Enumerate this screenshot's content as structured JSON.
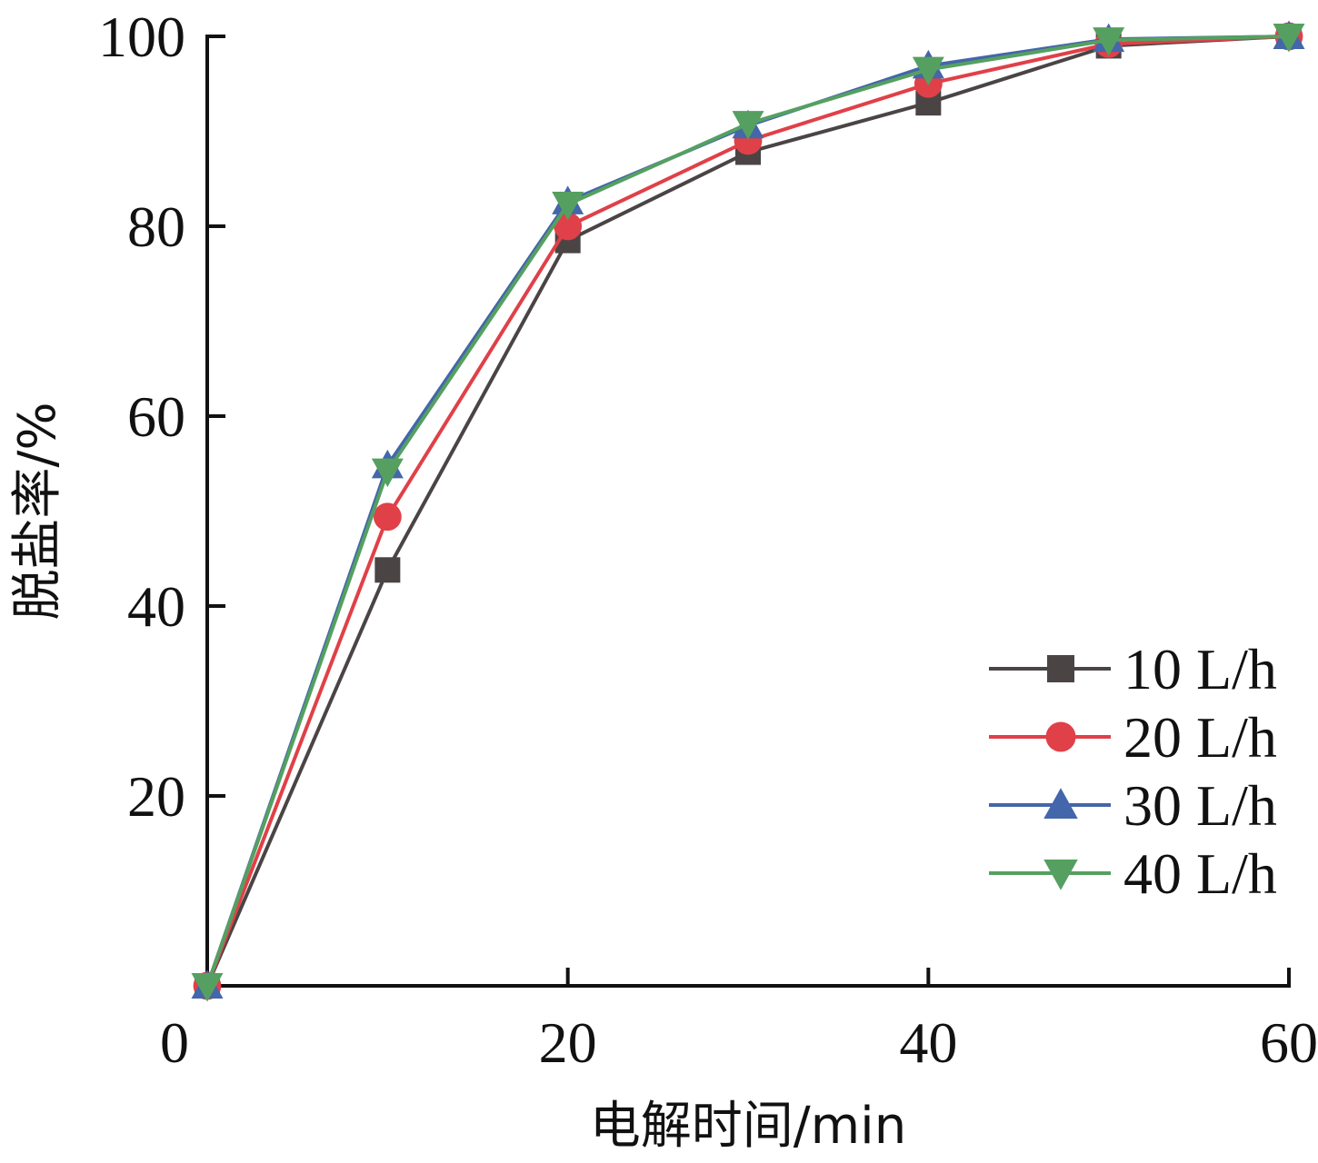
{
  "chart_data": {
    "type": "line",
    "title": "",
    "xlabel": "电解时间/min",
    "ylabel": "脱盐率/%",
    "xlim": [
      0,
      60
    ],
    "ylim": [
      0,
      100
    ],
    "x_ticks": [
      0,
      20,
      40,
      60
    ],
    "y_ticks": [
      20,
      40,
      60,
      80,
      100
    ],
    "x_tick_labels": [
      "0",
      "20",
      "40",
      "60"
    ],
    "y_tick_labels": [
      "20",
      "40",
      "60",
      "80",
      "100"
    ],
    "grid": false,
    "legend_position": "bottom-right",
    "x": [
      0,
      10,
      20,
      30,
      40,
      50,
      60
    ],
    "series": [
      {
        "name": "10 L/h",
        "color": "#4a4445",
        "marker": "square",
        "values": [
          0,
          43.8,
          78.5,
          87.8,
          93.0,
          99.0,
          100
        ]
      },
      {
        "name": "20 L/h",
        "color": "#e04048",
        "marker": "circle",
        "values": [
          0,
          49.4,
          80.0,
          89.0,
          95.0,
          99.2,
          100
        ]
      },
      {
        "name": "30 L/h",
        "color": "#4466aa",
        "marker": "triangle-up",
        "values": [
          0,
          54.8,
          82.6,
          90.6,
          96.9,
          99.7,
          100
        ]
      },
      {
        "name": "40 L/h",
        "color": "#55a060",
        "marker": "triangle-down",
        "values": [
          0,
          54.2,
          82.3,
          90.8,
          96.5,
          99.6,
          100
        ]
      }
    ]
  }
}
